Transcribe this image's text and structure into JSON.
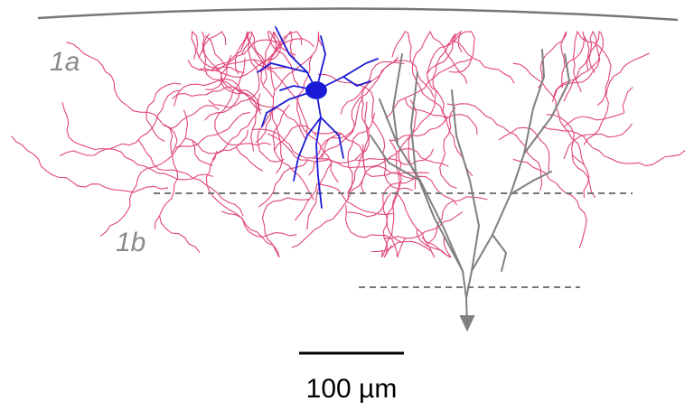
{
  "layers": {
    "upper": "1a",
    "lower": "1b"
  },
  "scale_bar": {
    "label": "100 µm"
  }
}
